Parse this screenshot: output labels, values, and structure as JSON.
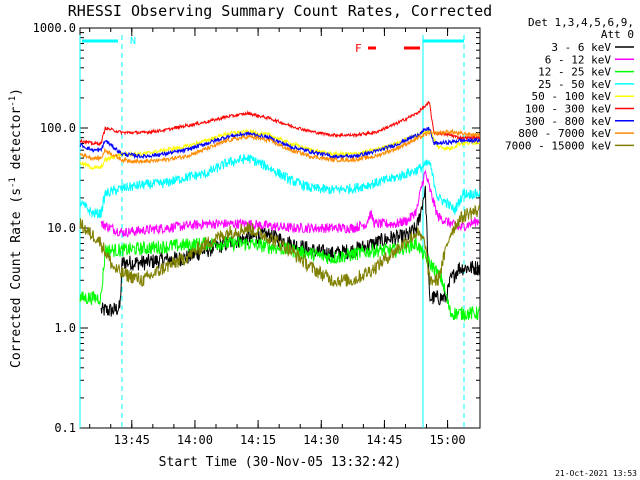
{
  "chart_data": {
    "type": "line",
    "title": "RHESSI Observing Summary Count Rates, Corrected",
    "xlabel": "Start Time (30-Nov-05 13:32:42)",
    "ylabel_main": "Corrected Count Rate (s",
    "ylabel_sup1": "-1",
    "ylabel_mid": " detector",
    "ylabel_sup2": "-1",
    "ylabel_end": ")",
    "yscale": "log",
    "ylim": [
      0.1,
      1000.0
    ],
    "y_ticks": [
      {
        "value": 0.1,
        "label": "0.1"
      },
      {
        "value": 1.0,
        "label": "1.0"
      },
      {
        "value": 10.0,
        "label": "10.0"
      },
      {
        "value": 100.0,
        "label": "100.0"
      },
      {
        "value": 1000.0,
        "label": "1000.0"
      }
    ],
    "xlim_minutes": [
      0,
      95
    ],
    "x_ticks": [
      {
        "value": 12.3,
        "label": "13:45"
      },
      {
        "value": 27.3,
        "label": "14:00"
      },
      {
        "value": 42.3,
        "label": "14:15"
      },
      {
        "value": 57.3,
        "label": "14:30"
      },
      {
        "value": 72.3,
        "label": "14:45"
      },
      {
        "value": 87.3,
        "label": "15:00"
      }
    ],
    "legend_header": [
      "Det 1,3,4,5,6,9,",
      "Att 0"
    ],
    "legend_placement": "right",
    "annotations": {
      "night_label": "N",
      "flare_label": "F",
      "timestamp": "21-Oct-2021 13:53"
    },
    "series": [
      {
        "name": "3 - 6 keV",
        "color": "#000000",
        "noise": 0.08,
        "points": [
          [
            5,
            1.5
          ],
          [
            8,
            1.5
          ],
          [
            9.5,
            1.6
          ],
          [
            10,
            4.5
          ],
          [
            15,
            4.5
          ],
          [
            20,
            4.8
          ],
          [
            25,
            5
          ],
          [
            30,
            6
          ],
          [
            35,
            7
          ],
          [
            40,
            8
          ],
          [
            45,
            8.5
          ],
          [
            50,
            7
          ],
          [
            55,
            6
          ],
          [
            60,
            5.5
          ],
          [
            65,
            6
          ],
          [
            70,
            7
          ],
          [
            72,
            7.5
          ],
          [
            74,
            8
          ],
          [
            76,
            8
          ],
          [
            78,
            8.5
          ],
          [
            80,
            10
          ],
          [
            81,
            15
          ],
          [
            82,
            25
          ],
          [
            83,
            2
          ],
          [
            85,
            2
          ],
          [
            87,
            2
          ],
          [
            88,
            3
          ],
          [
            90,
            4
          ],
          [
            95,
            4
          ]
        ]
      },
      {
        "name": "6 - 12 keV",
        "color": "#ff00ff",
        "noise": 0.05,
        "points": [
          [
            5,
            11
          ],
          [
            10,
            9
          ],
          [
            20,
            10
          ],
          [
            30,
            11
          ],
          [
            40,
            11
          ],
          [
            50,
            10
          ],
          [
            60,
            10
          ],
          [
            65,
            10
          ],
          [
            68,
            11
          ],
          [
            69,
            14
          ],
          [
            70,
            11
          ],
          [
            72,
            11
          ],
          [
            75,
            11
          ],
          [
            78,
            12
          ],
          [
            80,
            15
          ],
          [
            81,
            25
          ],
          [
            82,
            36
          ],
          [
            83,
            25
          ],
          [
            85,
            13
          ],
          [
            90,
            10
          ],
          [
            95,
            12
          ]
        ]
      },
      {
        "name": "12 - 25 keV",
        "color": "#00ff00",
        "noise": 0.07,
        "points": [
          [
            0,
            2
          ],
          [
            5,
            2
          ],
          [
            6,
            6
          ],
          [
            10,
            6
          ],
          [
            20,
            6.5
          ],
          [
            30,
            7
          ],
          [
            40,
            7
          ],
          [
            50,
            6
          ],
          [
            60,
            5
          ],
          [
            70,
            6
          ],
          [
            75,
            6
          ],
          [
            80,
            7
          ],
          [
            82,
            5
          ],
          [
            84,
            4
          ],
          [
            86,
            3
          ],
          [
            88,
            1.4
          ],
          [
            90,
            1.4
          ],
          [
            95,
            1.4
          ]
        ]
      },
      {
        "name": "25 - 50 keV",
        "color": "#00ffff",
        "noise": 0.05,
        "points": [
          [
            0,
            18
          ],
          [
            3,
            14
          ],
          [
            5,
            14
          ],
          [
            6,
            22
          ],
          [
            10,
            25
          ],
          [
            15,
            27
          ],
          [
            20,
            28
          ],
          [
            25,
            32
          ],
          [
            30,
            35
          ],
          [
            35,
            45
          ],
          [
            40,
            50
          ],
          [
            45,
            40
          ],
          [
            50,
            30
          ],
          [
            55,
            25
          ],
          [
            60,
            24
          ],
          [
            65,
            25
          ],
          [
            70,
            28
          ],
          [
            75,
            32
          ],
          [
            80,
            38
          ],
          [
            83,
            45
          ],
          [
            85,
            20
          ],
          [
            87,
            18
          ],
          [
            89,
            15
          ],
          [
            91,
            22
          ],
          [
            95,
            22
          ]
        ]
      },
      {
        "name": "50 - 100 keV",
        "color": "#ffff00",
        "noise": 0.02,
        "points": [
          [
            0,
            45
          ],
          [
            3,
            40
          ],
          [
            5,
            40
          ],
          [
            6,
            48
          ],
          [
            10,
            55
          ],
          [
            15,
            55
          ],
          [
            20,
            60
          ],
          [
            25,
            65
          ],
          [
            30,
            75
          ],
          [
            35,
            88
          ],
          [
            40,
            92
          ],
          [
            45,
            85
          ],
          [
            50,
            70
          ],
          [
            55,
            60
          ],
          [
            60,
            55
          ],
          [
            65,
            55
          ],
          [
            70,
            60
          ],
          [
            75,
            70
          ],
          [
            80,
            85
          ],
          [
            83,
            95
          ],
          [
            85,
            65
          ],
          [
            88,
            62
          ],
          [
            90,
            70
          ],
          [
            95,
            72
          ]
        ]
      },
      {
        "name": "100 - 300 keV",
        "color": "#ff0000",
        "noise": 0.015,
        "points": [
          [
            0,
            75
          ],
          [
            3,
            70
          ],
          [
            5,
            70
          ],
          [
            6,
            100
          ],
          [
            10,
            90
          ],
          [
            15,
            90
          ],
          [
            20,
            95
          ],
          [
            25,
            105
          ],
          [
            30,
            115
          ],
          [
            35,
            130
          ],
          [
            40,
            140
          ],
          [
            45,
            125
          ],
          [
            50,
            105
          ],
          [
            55,
            92
          ],
          [
            60,
            85
          ],
          [
            65,
            85
          ],
          [
            70,
            90
          ],
          [
            75,
            110
          ],
          [
            80,
            140
          ],
          [
            83,
            180
          ],
          [
            84,
            90
          ],
          [
            88,
            85
          ],
          [
            90,
            80
          ],
          [
            95,
            80
          ]
        ]
      },
      {
        "name": "300 - 800 keV",
        "color": "#0000ff",
        "noise": 0.02,
        "points": [
          [
            0,
            68
          ],
          [
            3,
            60
          ],
          [
            5,
            60
          ],
          [
            6,
            75
          ],
          [
            10,
            55
          ],
          [
            15,
            52
          ],
          [
            20,
            55
          ],
          [
            25,
            60
          ],
          [
            30,
            70
          ],
          [
            35,
            82
          ],
          [
            40,
            88
          ],
          [
            45,
            80
          ],
          [
            50,
            65
          ],
          [
            55,
            58
          ],
          [
            60,
            52
          ],
          [
            65,
            52
          ],
          [
            70,
            58
          ],
          [
            75,
            68
          ],
          [
            80,
            85
          ],
          [
            83,
            100
          ],
          [
            84,
            70
          ],
          [
            88,
            72
          ],
          [
            90,
            75
          ],
          [
            95,
            75
          ]
        ]
      },
      {
        "name": "800 - 7000 keV",
        "color": "#ff8c00",
        "noise": 0.02,
        "points": [
          [
            0,
            55
          ],
          [
            3,
            50
          ],
          [
            5,
            50
          ],
          [
            6,
            60
          ],
          [
            10,
            48
          ],
          [
            15,
            46
          ],
          [
            20,
            48
          ],
          [
            25,
            52
          ],
          [
            30,
            62
          ],
          [
            35,
            75
          ],
          [
            40,
            82
          ],
          [
            45,
            75
          ],
          [
            50,
            60
          ],
          [
            55,
            52
          ],
          [
            60,
            48
          ],
          [
            65,
            48
          ],
          [
            70,
            52
          ],
          [
            75,
            62
          ],
          [
            80,
            78
          ],
          [
            83,
            90
          ],
          [
            84,
            88
          ],
          [
            88,
            92
          ],
          [
            90,
            88
          ],
          [
            95,
            85
          ]
        ]
      },
      {
        "name": "7000 - 15000 keV",
        "color": "#808000",
        "noise": 0.07,
        "points": [
          [
            0,
            11
          ],
          [
            2,
            9
          ],
          [
            4,
            8
          ],
          [
            5,
            7
          ],
          [
            8,
            4
          ],
          [
            10,
            3.5
          ],
          [
            15,
            3
          ],
          [
            20,
            4
          ],
          [
            25,
            5
          ],
          [
            30,
            7
          ],
          [
            35,
            9
          ],
          [
            40,
            10
          ],
          [
            45,
            8
          ],
          [
            50,
            6
          ],
          [
            55,
            4
          ],
          [
            60,
            3
          ],
          [
            65,
            3
          ],
          [
            70,
            4
          ],
          [
            75,
            6
          ],
          [
            80,
            9
          ],
          [
            82,
            7
          ],
          [
            83,
            3
          ],
          [
            85,
            3
          ],
          [
            88,
            9
          ],
          [
            90,
            12
          ],
          [
            92,
            14
          ],
          [
            95,
            15
          ]
        ]
      }
    ]
  }
}
